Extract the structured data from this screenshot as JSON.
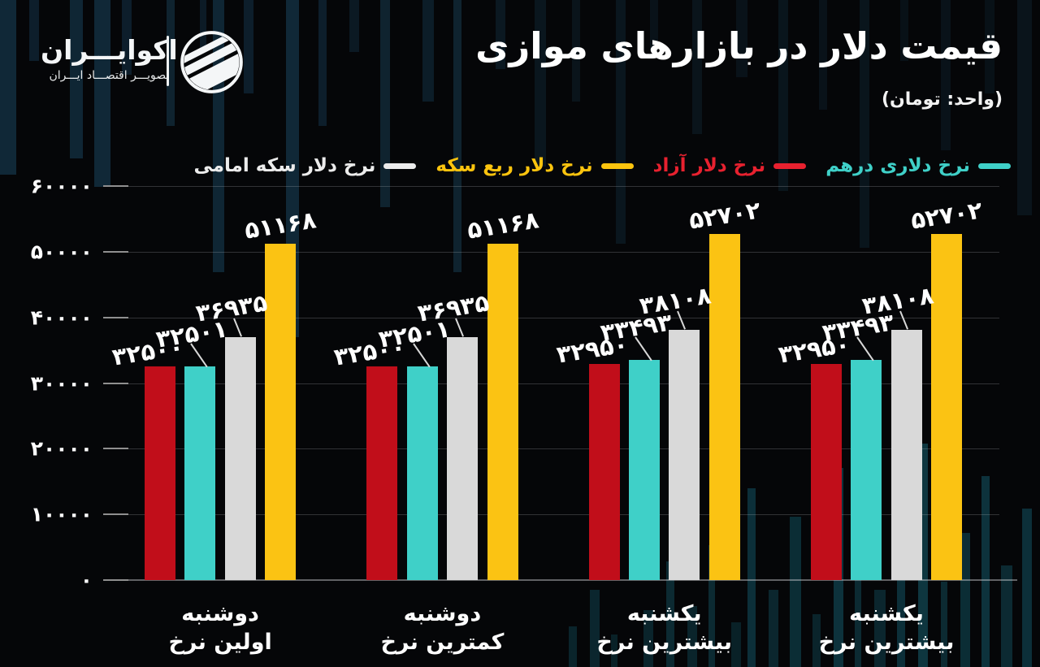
{
  "brand": {
    "name": "اکوایـــران",
    "tagline": "تصویـــر اقتصـــاد ایـــران"
  },
  "header": {
    "title": "قیمت دلار در بازارهای موازی",
    "unit_note": "(واحد: تومان)"
  },
  "legend": {
    "items": [
      {
        "label": "نرخ دلاری درهم",
        "color": "#3fd0c8"
      },
      {
        "label": "نرخ دلار آزاد",
        "color": "#e8212f"
      },
      {
        "label": "نرخ دلار ربع سکه",
        "color": "#fcc40e"
      },
      {
        "label": "نرخ دلار سکه امامی",
        "color": "#ececec"
      }
    ]
  },
  "chart_data": {
    "type": "bar",
    "title": "قیمت دلار در بازارهای موازی",
    "unit": "تومان",
    "grid": true,
    "legend_position": "top",
    "y_axis": {
      "min": 0,
      "max": 60000,
      "tick_step": 10000,
      "tick_values": [
        0,
        10000,
        20000,
        30000,
        40000,
        50000,
        60000
      ],
      "tick_labels": [
        "۰",
        "۱۰۰۰۰",
        "۲۰۰۰۰",
        "۳۰۰۰۰",
        "۴۰۰۰۰",
        "۵۰۰۰۰",
        "۶۰۰۰۰"
      ]
    },
    "categories": [
      {
        "line1": "دوشنبه",
        "line2": "اولین نرخ"
      },
      {
        "line1": "دوشنبه",
        "line2": "کمترین نرخ"
      },
      {
        "line1": "یکشنبه",
        "line2": "بیشترین نرخ"
      },
      {
        "line1": "یکشنبه",
        "line2": "بیشترین نرخ"
      }
    ],
    "series": [
      {
        "name": "نرخ دلار آزاد",
        "color": "#c10e1a",
        "values": [
          32500,
          32500,
          32950,
          32950
        ],
        "value_labels": [
          "۳۲۵۰۰",
          "۳۲۵۰۰",
          "۳۲۹۵۰",
          "۳۲۹۵۰"
        ]
      },
      {
        "name": "نرخ دلاری درهم",
        "color": "#3fd0c8",
        "values": [
          32501,
          32501,
          33493,
          33493
        ],
        "value_labels": [
          "۳۲۵۰۱",
          "۳۲۵۰۱",
          "۳۳۴۹۳",
          "۳۳۴۹۳"
        ]
      },
      {
        "name": "نرخ دلار سکه امامی",
        "color": "#d9d9d9",
        "values": [
          36935,
          36935,
          38108,
          38108
        ],
        "value_labels": [
          "۳۶۹۳۵",
          "۳۶۹۳۵",
          "۳۸۱۰۸",
          "۳۸۱۰۸"
        ]
      },
      {
        "name": "نرخ دلار ربع سکه",
        "color": "#fbc313",
        "values": [
          51168,
          51168,
          52702,
          52702
        ],
        "value_labels": [
          "۵۱۱۶۸",
          "۵۱۱۶۸",
          "۵۲۷۰۲",
          "۵۲۷۰۲"
        ]
      }
    ]
  }
}
